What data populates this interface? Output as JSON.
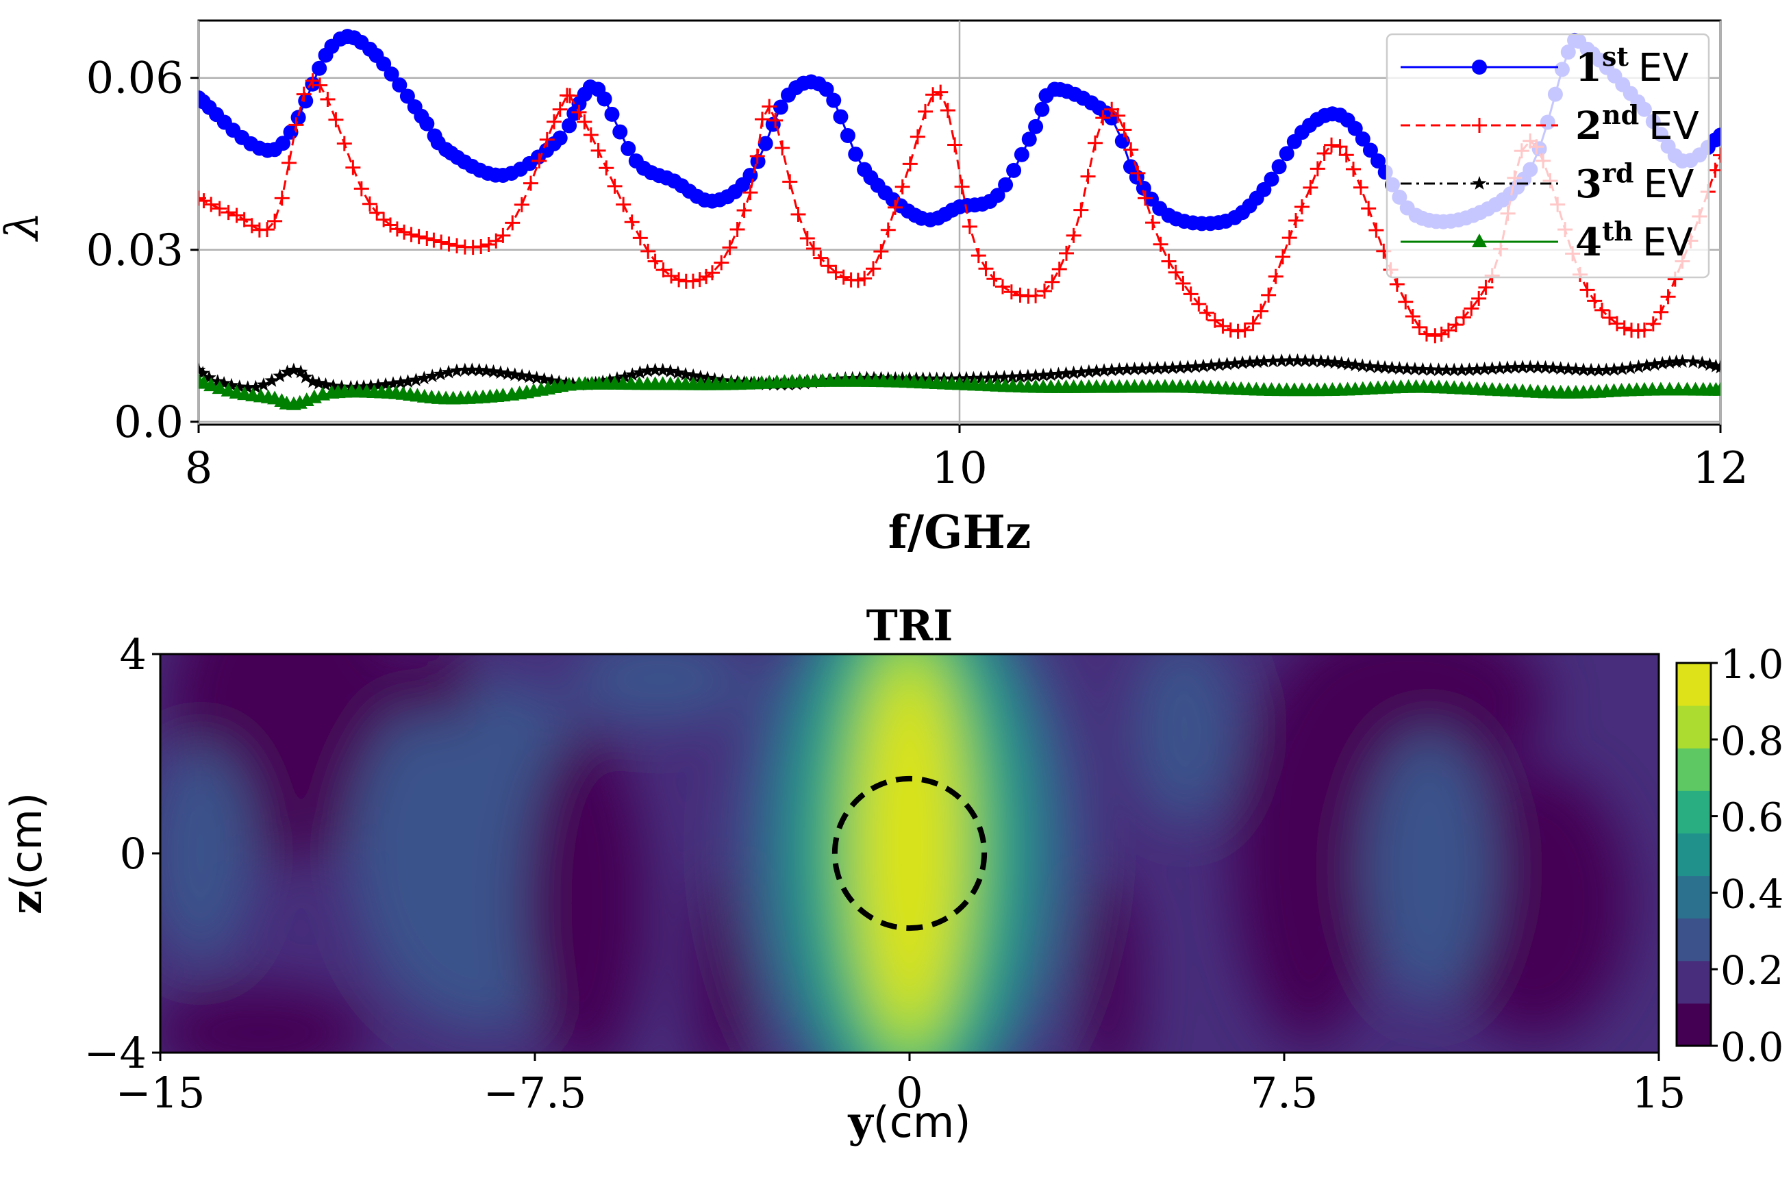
{
  "chart_data": [
    {
      "type": "line",
      "xlabel": "f/GHz",
      "ylabel": "λ",
      "xlim": [
        8,
        12
      ],
      "ylim": [
        -0.0005,
        0.07
      ],
      "xticks": [
        8,
        10,
        12
      ],
      "xtick_labels": [
        "8",
        "10",
        "12"
      ],
      "yticks": [
        0.0,
        0.03,
        0.06
      ],
      "ytick_labels": [
        "0.0",
        "0.03",
        "0.06"
      ],
      "grid": true,
      "legend_position": "top-right",
      "series": [
        {
          "name": "1st EV",
          "label_base": "1",
          "label_sup": "st",
          "label_suffix": "EV",
          "color": "#0000ff",
          "marker": "circle",
          "line": "solid",
          "points": [
            [
              8.0,
              0.0565
            ],
            [
              8.2,
              0.0475
            ],
            [
              8.35,
              0.0655
            ],
            [
              8.45,
              0.065
            ],
            [
              8.6,
              0.052
            ],
            [
              8.65,
              0.0475
            ],
            [
              8.8,
              0.043
            ],
            [
              8.95,
              0.0495
            ],
            [
              9.0,
              0.0555
            ],
            [
              9.05,
              0.058
            ],
            [
              9.15,
              0.0455
            ],
            [
              9.25,
              0.042
            ],
            [
              9.35,
              0.0385
            ],
            [
              9.45,
              0.043
            ],
            [
              9.55,
              0.057
            ],
            [
              9.65,
              0.058
            ],
            [
              9.75,
              0.044
            ],
            [
              9.9,
              0.0355
            ],
            [
              10.0,
              0.0375
            ],
            [
              10.1,
              0.0395
            ],
            [
              10.2,
              0.0515
            ],
            [
              10.25,
              0.058
            ],
            [
              10.4,
              0.053
            ],
            [
              10.45,
              0.0445
            ],
            [
              10.55,
              0.036
            ],
            [
              10.7,
              0.035
            ],
            [
              10.8,
              0.0405
            ],
            [
              10.9,
              0.0505
            ],
            [
              11.0,
              0.0535
            ],
            [
              11.1,
              0.0455
            ],
            [
              11.2,
              0.036
            ],
            [
              11.35,
              0.036
            ],
            [
              11.5,
              0.044
            ],
            [
              11.6,
              0.0645
            ],
            [
              11.65,
              0.065
            ],
            [
              11.8,
              0.0545
            ],
            [
              11.9,
              0.0455
            ],
            [
              12.0,
              0.05
            ]
          ]
        },
        {
          "name": "2nd EV",
          "label_base": "2",
          "label_sup": "nd",
          "label_suffix": "EV",
          "color": "#ff0000",
          "marker": "plus",
          "line": "dashed",
          "points": [
            [
              8.0,
              0.039
            ],
            [
              8.1,
              0.036
            ],
            [
              8.2,
              0.035
            ],
            [
              8.3,
              0.0595
            ],
            [
              8.45,
              0.038
            ],
            [
              8.6,
              0.032
            ],
            [
              8.8,
              0.0325
            ],
            [
              8.95,
              0.0545
            ],
            [
              9.0,
              0.054
            ],
            [
              9.2,
              0.028
            ],
            [
              9.35,
              0.026
            ],
            [
              9.45,
              0.04
            ],
            [
              9.5,
              0.055
            ],
            [
              9.6,
              0.032
            ],
            [
              9.75,
              0.025
            ],
            [
              9.85,
              0.041
            ],
            [
              9.95,
              0.0575
            ],
            [
              10.05,
              0.029
            ],
            [
              10.2,
              0.022
            ],
            [
              10.3,
              0.0325
            ],
            [
              10.4,
              0.0545
            ],
            [
              10.55,
              0.028
            ],
            [
              10.75,
              0.016
            ],
            [
              10.9,
              0.0375
            ],
            [
              11.0,
              0.048
            ],
            [
              11.15,
              0.024
            ],
            [
              11.25,
              0.015
            ],
            [
              11.4,
              0.0255
            ],
            [
              11.5,
              0.049
            ],
            [
              11.65,
              0.023
            ],
            [
              11.8,
              0.016
            ],
            [
              11.9,
              0.028
            ],
            [
              12.0,
              0.0465
            ]
          ]
        },
        {
          "name": "3rd EV",
          "label_base": "3",
          "label_sup": "rd",
          "label_suffix": "EV",
          "color": "#000000",
          "marker": "star",
          "line": "dashdot",
          "points": [
            [
              8.0,
              0.009
            ],
            [
              8.05,
              0.007
            ],
            [
              8.15,
              0.006
            ],
            [
              8.25,
              0.009
            ],
            [
              8.3,
              0.007
            ],
            [
              8.4,
              0.006
            ],
            [
              8.55,
              0.007
            ],
            [
              8.7,
              0.009
            ],
            [
              8.85,
              0.008
            ],
            [
              9.0,
              0.0065
            ],
            [
              9.1,
              0.0075
            ],
            [
              9.2,
              0.009
            ],
            [
              9.3,
              0.008
            ],
            [
              9.4,
              0.007
            ],
            [
              9.55,
              0.0065
            ],
            [
              9.7,
              0.0075
            ],
            [
              9.85,
              0.0075
            ],
            [
              10.0,
              0.0075
            ],
            [
              10.2,
              0.008
            ],
            [
              10.4,
              0.009
            ],
            [
              10.6,
              0.0095
            ],
            [
              10.8,
              0.0105
            ],
            [
              10.95,
              0.0105
            ],
            [
              11.1,
              0.0095
            ],
            [
              11.3,
              0.009
            ],
            [
              11.5,
              0.0095
            ],
            [
              11.7,
              0.009
            ],
            [
              11.9,
              0.0105
            ],
            [
              12.0,
              0.0095
            ]
          ]
        },
        {
          "name": "4th EV",
          "label_base": "4",
          "label_sup": "th",
          "label_suffix": "EV",
          "color": "#008000",
          "marker": "triangle",
          "line": "solid",
          "points": [
            [
              8.0,
              0.007
            ],
            [
              8.1,
              0.005
            ],
            [
              8.2,
              0.004
            ],
            [
              8.25,
              0.003
            ],
            [
              8.35,
              0.005
            ],
            [
              8.5,
              0.005
            ],
            [
              8.65,
              0.004
            ],
            [
              8.8,
              0.0045
            ],
            [
              8.9,
              0.0055
            ],
            [
              9.0,
              0.0065
            ],
            [
              9.2,
              0.0065
            ],
            [
              9.4,
              0.0065
            ],
            [
              9.6,
              0.007
            ],
            [
              9.8,
              0.007
            ],
            [
              10.0,
              0.0065
            ],
            [
              10.2,
              0.006
            ],
            [
              10.4,
              0.006
            ],
            [
              10.6,
              0.006
            ],
            [
              10.8,
              0.0055
            ],
            [
              11.0,
              0.0055
            ],
            [
              11.2,
              0.006
            ],
            [
              11.4,
              0.0055
            ],
            [
              11.6,
              0.005
            ],
            [
              11.8,
              0.0055
            ],
            [
              12.0,
              0.0055
            ]
          ]
        }
      ]
    },
    {
      "type": "heatmap",
      "title": "TRI",
      "xlabel_bold": "y",
      "xlabel_unit": "(cm)",
      "ylabel_bold": "z",
      "ylabel_unit": "(cm)",
      "xlim": [
        -15,
        15
      ],
      "ylim": [
        -4,
        4
      ],
      "xticks": [
        -15,
        -7.5,
        0,
        7.5,
        15
      ],
      "xtick_labels": [
        "−15",
        "−7.5",
        "0",
        "7.5",
        "15"
      ],
      "yticks": [
        -4,
        0,
        4
      ],
      "ytick_labels": [
        "−4",
        "0",
        "4"
      ],
      "colorbar_range": [
        0,
        1
      ],
      "colorbar_ticks": [
        "0.0",
        "0.2",
        "0.4",
        "0.6",
        "0.8",
        "1.0"
      ],
      "colormap_levels": [
        "#440154",
        "#472d7b",
        "#3b528b",
        "#2c728e",
        "#21918c",
        "#28ae80",
        "#5ec962",
        "#addc30",
        "#dde318"
      ],
      "circle": {
        "center_y": 0,
        "center_z": 0,
        "radius_cm": 1.5,
        "style": "dashed",
        "color": "#000000"
      },
      "hotspot": {
        "center_y": 0,
        "center_z": 0,
        "peak": 1.0
      }
    }
  ]
}
